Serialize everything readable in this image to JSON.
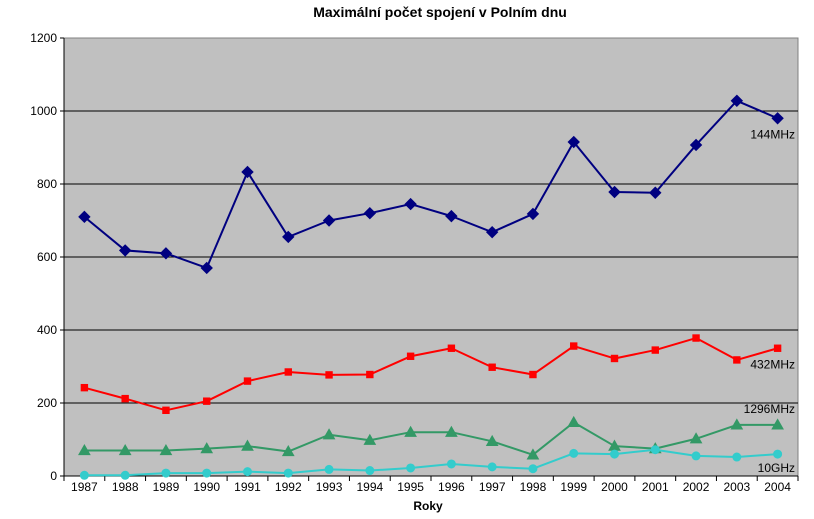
{
  "chart_data": {
    "type": "line",
    "title": "Maximální počet spojení v Polním dnu",
    "xlabel": "Roky",
    "ylabel": "",
    "ylim": [
      0,
      1200
    ],
    "yticks": [
      0,
      200,
      400,
      600,
      800,
      1000,
      1200
    ],
    "grid": true,
    "legend": "inline labels at right end of series",
    "categories": [
      "1987",
      "1988",
      "1989",
      "1990",
      "1991",
      "1992",
      "1993",
      "1994",
      "1995",
      "1996",
      "1997",
      "1998",
      "1999",
      "2000",
      "2001",
      "2002",
      "2003",
      "2004"
    ],
    "colors": {
      "plot_background": "#c0c0c0",
      "gridline": "#000000"
    },
    "series": [
      {
        "name": "144MHz",
        "color": "#000080",
        "marker": "diamond",
        "values": [
          710,
          618,
          610,
          570,
          833,
          655,
          700,
          720,
          745,
          712,
          668,
          718,
          915,
          778,
          776,
          907,
          1028,
          980
        ]
      },
      {
        "name": "432MHz",
        "color": "#ff0000",
        "marker": "square",
        "values": [
          242,
          212,
          180,
          205,
          260,
          285,
          277,
          278,
          328,
          350,
          298,
          278,
          356,
          322,
          345,
          378,
          318,
          350
        ]
      },
      {
        "name": "1296MHz",
        "color": "#339966",
        "marker": "triangle",
        "values": [
          70,
          70,
          70,
          75,
          82,
          67,
          113,
          98,
          120,
          120,
          95,
          58,
          147,
          82,
          75,
          102,
          140,
          140
        ]
      },
      {
        "name": "10GHz",
        "color": "#33cccc",
        "marker": "circle",
        "values": [
          2,
          2,
          8,
          8,
          12,
          8,
          18,
          15,
          22,
          33,
          25,
          20,
          62,
          60,
          72,
          55,
          52,
          60
        ]
      }
    ]
  }
}
